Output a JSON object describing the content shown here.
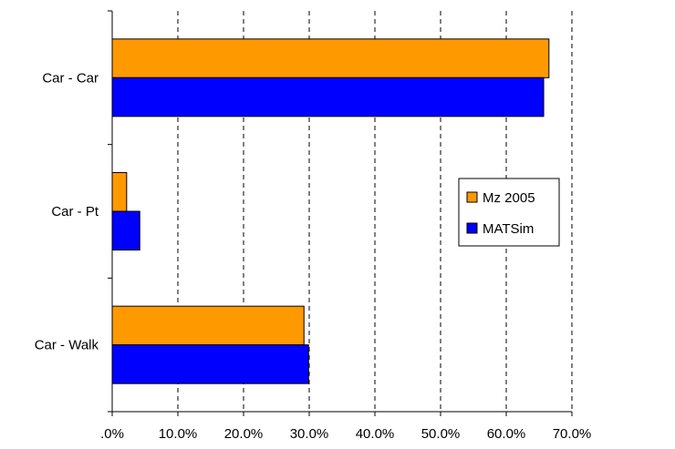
{
  "chart_data": {
    "type": "bar",
    "orientation": "horizontal",
    "categories": [
      "Car - Car",
      "Car - Pt",
      "Car - Walk"
    ],
    "series": [
      {
        "name": "Mz 2005",
        "values": [
          66.5,
          2.2,
          29.2
        ],
        "color": "#FF9900"
      },
      {
        "name": "MATSim",
        "values": [
          65.7,
          4.2,
          29.9
        ],
        "color": "#0000FF"
      }
    ],
    "x_ticks": [
      ".0%",
      "10.0%",
      "20.0%",
      "30.0%",
      "40.0%",
      "50.0%",
      "60.0%",
      "70.0%"
    ],
    "xlim": [
      0,
      70
    ],
    "unit": "%",
    "grid": "vertical dashed",
    "legend_position": "right"
  }
}
